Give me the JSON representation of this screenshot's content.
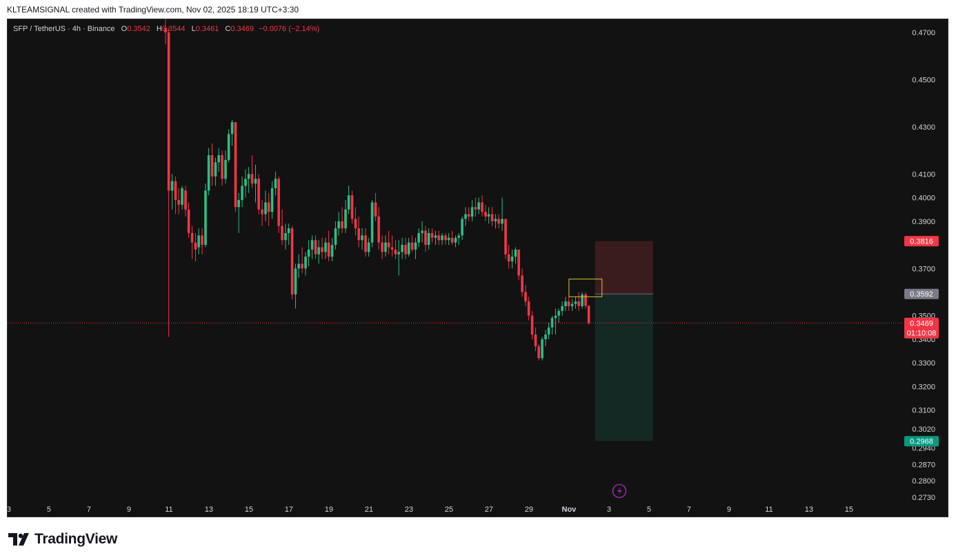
{
  "header": {
    "caption": "KLTEAMSIGNAL created with TradingView.com, Nov 02, 2025 18:19 UTC+3:30"
  },
  "legend": {
    "symbol": "SFP / TetherUS · 4h · Binance",
    "open_label": "O",
    "open": "0.3542",
    "high_label": "H",
    "high": "0.3544",
    "low_label": "L",
    "low": "0.3461",
    "close_label": "C",
    "close": "0.3469",
    "change": "−0.0076 (−2.14%)"
  },
  "footer": {
    "brand": "TradingView"
  },
  "colors": {
    "background": "#121212",
    "up": "#22ab94",
    "up_bright": "#2ebd85",
    "down": "#f23645",
    "grid_text": "#d1d4dc",
    "stop_zone": "#3a1c1f",
    "target_zone": "#142824",
    "box": "#e6c229",
    "price_line": "#f23645"
  },
  "chart_data": {
    "type": "candlestick",
    "y_axis": {
      "ylim": [
        0.271,
        0.475
      ],
      "tick_labels": [
        "0.4700",
        "0.4500",
        "0.4300",
        "0.4100",
        "0.4000",
        "0.3900",
        "0.3700",
        "0.3500",
        "0.3400",
        "0.3300",
        "0.3200",
        "0.3100",
        "0.3020",
        "0.2940",
        "0.2870",
        "0.2800",
        "0.2730"
      ],
      "tick_values": [
        0.47,
        0.45,
        0.43,
        0.41,
        0.4,
        0.39,
        0.37,
        0.35,
        0.34,
        0.33,
        0.32,
        0.31,
        0.302,
        0.294,
        0.287,
        0.28,
        0.273
      ]
    },
    "x_axis": {
      "tick_labels": [
        "3",
        "5",
        "7",
        "9",
        "11",
        "13",
        "15",
        "17",
        "19",
        "21",
        "23",
        "25",
        "27",
        "29",
        "Nov",
        "3",
        "5",
        "7",
        "9",
        "11",
        "13",
        "15"
      ],
      "tick_days": [
        3,
        5,
        7,
        9,
        11,
        13,
        15,
        17,
        19,
        21,
        23,
        25,
        27,
        29,
        31,
        33,
        35,
        37,
        39,
        41,
        43,
        45
      ]
    },
    "price_markers": [
      {
        "label": "0.3816",
        "value": 0.3816,
        "color": "#f23645"
      },
      {
        "label": "0.3592",
        "value": 0.3592,
        "color": "#787b86"
      },
      {
        "label": "0.3469",
        "value": 0.3469,
        "color": "#f23645",
        "countdown": "01:10:08"
      },
      {
        "label": "0.2968",
        "value": 0.2968,
        "color": "#089981"
      }
    ],
    "current_price": 0.3469,
    "position": {
      "entry": 0.3592,
      "stop": 0.3816,
      "target": 0.2968,
      "start_day": 32.3,
      "end_day": 35.2
    },
    "highlight_box": {
      "from_day": 31.0,
      "to_day": 32.65,
      "low": 0.358,
      "high": 0.3655
    },
    "candles": [
      [
        10.83,
        0.472,
        0.476,
        0.465,
        0.47
      ],
      [
        10.99,
        0.47,
        0.472,
        0.341,
        0.403
      ],
      [
        11.16,
        0.403,
        0.41,
        0.395,
        0.407
      ],
      [
        11.33,
        0.407,
        0.409,
        0.393,
        0.399
      ],
      [
        11.49,
        0.399,
        0.404,
        0.393,
        0.397
      ],
      [
        11.66,
        0.397,
        0.405,
        0.395,
        0.404
      ],
      [
        11.83,
        0.403,
        0.405,
        0.392,
        0.395
      ],
      [
        11.99,
        0.395,
        0.398,
        0.383,
        0.385
      ],
      [
        12.16,
        0.385,
        0.388,
        0.374,
        0.381
      ],
      [
        12.33,
        0.381,
        0.385,
        0.373,
        0.378
      ],
      [
        12.49,
        0.379,
        0.387,
        0.376,
        0.384
      ],
      [
        12.66,
        0.384,
        0.387,
        0.376,
        0.38
      ],
      [
        12.83,
        0.38,
        0.406,
        0.379,
        0.403
      ],
      [
        12.99,
        0.403,
        0.421,
        0.401,
        0.418
      ],
      [
        13.16,
        0.418,
        0.423,
        0.405,
        0.409
      ],
      [
        13.33,
        0.409,
        0.417,
        0.405,
        0.415
      ],
      [
        13.49,
        0.415,
        0.421,
        0.411,
        0.418
      ],
      [
        13.66,
        0.418,
        0.42,
        0.405,
        0.408
      ],
      [
        13.83,
        0.408,
        0.42,
        0.406,
        0.416
      ],
      [
        13.99,
        0.416,
        0.429,
        0.415,
        0.427
      ],
      [
        14.16,
        0.427,
        0.433,
        0.422,
        0.432
      ],
      [
        14.33,
        0.432,
        0.432,
        0.394,
        0.396
      ],
      [
        14.49,
        0.396,
        0.402,
        0.385,
        0.399
      ],
      [
        14.66,
        0.399,
        0.409,
        0.396,
        0.405
      ],
      [
        14.83,
        0.405,
        0.412,
        0.4,
        0.408
      ],
      [
        14.99,
        0.408,
        0.413,
        0.402,
        0.41
      ],
      [
        15.16,
        0.41,
        0.418,
        0.404,
        0.406
      ],
      [
        15.33,
        0.406,
        0.414,
        0.398,
        0.408
      ],
      [
        15.49,
        0.408,
        0.41,
        0.393,
        0.395
      ],
      [
        15.66,
        0.395,
        0.399,
        0.388,
        0.393
      ],
      [
        15.83,
        0.393,
        0.403,
        0.39,
        0.398
      ],
      [
        15.99,
        0.398,
        0.402,
        0.388,
        0.394
      ],
      [
        16.16,
        0.394,
        0.407,
        0.391,
        0.404
      ],
      [
        16.33,
        0.404,
        0.411,
        0.401,
        0.408
      ],
      [
        16.49,
        0.408,
        0.409,
        0.385,
        0.388
      ],
      [
        16.66,
        0.388,
        0.395,
        0.38,
        0.382
      ],
      [
        16.83,
        0.382,
        0.389,
        0.378,
        0.385
      ],
      [
        16.99,
        0.385,
        0.389,
        0.38,
        0.387
      ],
      [
        17.16,
        0.387,
        0.388,
        0.357,
        0.359
      ],
      [
        17.33,
        0.359,
        0.372,
        0.353,
        0.37
      ],
      [
        17.49,
        0.37,
        0.376,
        0.366,
        0.372
      ],
      [
        17.66,
        0.372,
        0.379,
        0.368,
        0.37
      ],
      [
        17.83,
        0.37,
        0.377,
        0.367,
        0.375
      ],
      [
        17.99,
        0.375,
        0.382,
        0.371,
        0.378
      ],
      [
        18.16,
        0.378,
        0.384,
        0.374,
        0.382
      ],
      [
        18.33,
        0.382,
        0.384,
        0.374,
        0.376
      ],
      [
        18.49,
        0.376,
        0.382,
        0.372,
        0.379
      ],
      [
        18.66,
        0.379,
        0.383,
        0.374,
        0.377
      ],
      [
        18.83,
        0.377,
        0.383,
        0.374,
        0.381
      ],
      [
        18.99,
        0.381,
        0.386,
        0.373,
        0.375
      ],
      [
        19.16,
        0.375,
        0.383,
        0.373,
        0.38
      ],
      [
        19.33,
        0.38,
        0.39,
        0.378,
        0.387
      ],
      [
        19.49,
        0.387,
        0.394,
        0.384,
        0.39
      ],
      [
        19.66,
        0.39,
        0.396,
        0.385,
        0.387
      ],
      [
        19.83,
        0.387,
        0.399,
        0.385,
        0.395
      ],
      [
        19.99,
        0.395,
        0.405,
        0.393,
        0.401
      ],
      [
        20.16,
        0.401,
        0.403,
        0.389,
        0.391
      ],
      [
        20.33,
        0.391,
        0.396,
        0.384,
        0.387
      ],
      [
        20.49,
        0.387,
        0.392,
        0.379,
        0.382
      ],
      [
        20.66,
        0.382,
        0.387,
        0.378,
        0.384
      ],
      [
        20.83,
        0.384,
        0.387,
        0.375,
        0.377
      ],
      [
        20.99,
        0.377,
        0.383,
        0.375,
        0.381
      ],
      [
        21.16,
        0.381,
        0.399,
        0.379,
        0.398
      ],
      [
        21.33,
        0.398,
        0.402,
        0.39,
        0.392
      ],
      [
        21.49,
        0.392,
        0.396,
        0.378,
        0.381
      ],
      [
        21.66,
        0.381,
        0.384,
        0.374,
        0.377
      ],
      [
        21.83,
        0.377,
        0.384,
        0.375,
        0.381
      ],
      [
        21.99,
        0.381,
        0.386,
        0.376,
        0.379
      ],
      [
        22.16,
        0.379,
        0.384,
        0.375,
        0.378
      ],
      [
        22.33,
        0.378,
        0.382,
        0.374,
        0.376
      ],
      [
        22.49,
        0.376,
        0.382,
        0.367,
        0.377
      ],
      [
        22.66,
        0.377,
        0.383,
        0.374,
        0.38
      ],
      [
        22.83,
        0.38,
        0.383,
        0.374,
        0.376
      ],
      [
        22.99,
        0.376,
        0.383,
        0.375,
        0.381
      ],
      [
        23.16,
        0.381,
        0.384,
        0.377,
        0.378
      ],
      [
        23.33,
        0.378,
        0.383,
        0.374,
        0.381
      ],
      [
        23.49,
        0.381,
        0.387,
        0.379,
        0.385
      ],
      [
        23.66,
        0.385,
        0.39,
        0.381,
        0.386
      ],
      [
        23.83,
        0.386,
        0.388,
        0.377,
        0.38
      ],
      [
        23.99,
        0.38,
        0.387,
        0.378,
        0.385
      ],
      [
        24.16,
        0.385,
        0.387,
        0.381,
        0.383
      ],
      [
        24.33,
        0.383,
        0.386,
        0.38,
        0.384
      ],
      [
        24.49,
        0.384,
        0.386,
        0.38,
        0.382
      ],
      [
        24.66,
        0.382,
        0.385,
        0.38,
        0.384
      ],
      [
        24.83,
        0.384,
        0.385,
        0.38,
        0.382
      ],
      [
        24.99,
        0.382,
        0.385,
        0.38,
        0.383
      ],
      [
        25.16,
        0.383,
        0.386,
        0.38,
        0.381
      ],
      [
        25.33,
        0.381,
        0.384,
        0.379,
        0.383
      ],
      [
        25.49,
        0.383,
        0.385,
        0.38,
        0.384
      ],
      [
        25.66,
        0.384,
        0.392,
        0.382,
        0.391
      ],
      [
        25.83,
        0.391,
        0.396,
        0.388,
        0.393
      ],
      [
        25.99,
        0.393,
        0.396,
        0.39,
        0.392
      ],
      [
        26.16,
        0.392,
        0.399,
        0.39,
        0.396
      ],
      [
        26.33,
        0.396,
        0.4,
        0.392,
        0.395
      ],
      [
        26.49,
        0.395,
        0.4,
        0.393,
        0.398
      ],
      [
        26.66,
        0.398,
        0.401,
        0.392,
        0.394
      ],
      [
        26.83,
        0.394,
        0.397,
        0.39,
        0.392
      ],
      [
        26.99,
        0.392,
        0.396,
        0.389,
        0.393
      ],
      [
        27.16,
        0.393,
        0.396,
        0.388,
        0.39
      ],
      [
        27.33,
        0.39,
        0.393,
        0.387,
        0.391
      ],
      [
        27.49,
        0.391,
        0.393,
        0.387,
        0.389
      ],
      [
        27.66,
        0.389,
        0.4,
        0.386,
        0.391
      ],
      [
        27.83,
        0.391,
        0.391,
        0.374,
        0.376
      ],
      [
        27.99,
        0.376,
        0.38,
        0.37,
        0.373
      ],
      [
        28.16,
        0.373,
        0.378,
        0.37,
        0.375
      ],
      [
        28.33,
        0.375,
        0.379,
        0.372,
        0.378
      ],
      [
        28.49,
        0.378,
        0.378,
        0.365,
        0.367
      ],
      [
        28.66,
        0.367,
        0.37,
        0.358,
        0.36
      ],
      [
        28.83,
        0.36,
        0.363,
        0.354,
        0.356
      ],
      [
        28.99,
        0.356,
        0.358,
        0.348,
        0.35
      ],
      [
        29.16,
        0.35,
        0.352,
        0.34,
        0.342
      ],
      [
        29.33,
        0.342,
        0.345,
        0.335,
        0.337
      ],
      [
        29.49,
        0.337,
        0.338,
        0.331,
        0.332
      ],
      [
        29.66,
        0.332,
        0.341,
        0.331,
        0.34
      ],
      [
        29.83,
        0.34,
        0.344,
        0.337,
        0.342
      ],
      [
        29.99,
        0.342,
        0.347,
        0.34,
        0.345
      ],
      [
        30.16,
        0.345,
        0.35,
        0.342,
        0.349
      ],
      [
        30.33,
        0.349,
        0.353,
        0.342,
        0.35
      ],
      [
        30.49,
        0.35,
        0.353,
        0.347,
        0.352
      ],
      [
        30.66,
        0.352,
        0.356,
        0.35,
        0.354
      ],
      [
        30.83,
        0.354,
        0.358,
        0.352,
        0.356
      ],
      [
        30.99,
        0.356,
        0.358,
        0.352,
        0.354
      ],
      [
        31.16,
        0.354,
        0.357,
        0.352,
        0.355
      ],
      [
        31.33,
        0.355,
        0.358,
        0.353,
        0.356
      ],
      [
        31.49,
        0.356,
        0.36,
        0.352,
        0.354
      ],
      [
        31.66,
        0.354,
        0.36,
        0.353,
        0.359
      ],
      [
        31.83,
        0.359,
        0.36,
        0.353,
        0.3542
      ],
      [
        31.99,
        0.3542,
        0.3544,
        0.3461,
        0.3469
      ]
    ]
  }
}
